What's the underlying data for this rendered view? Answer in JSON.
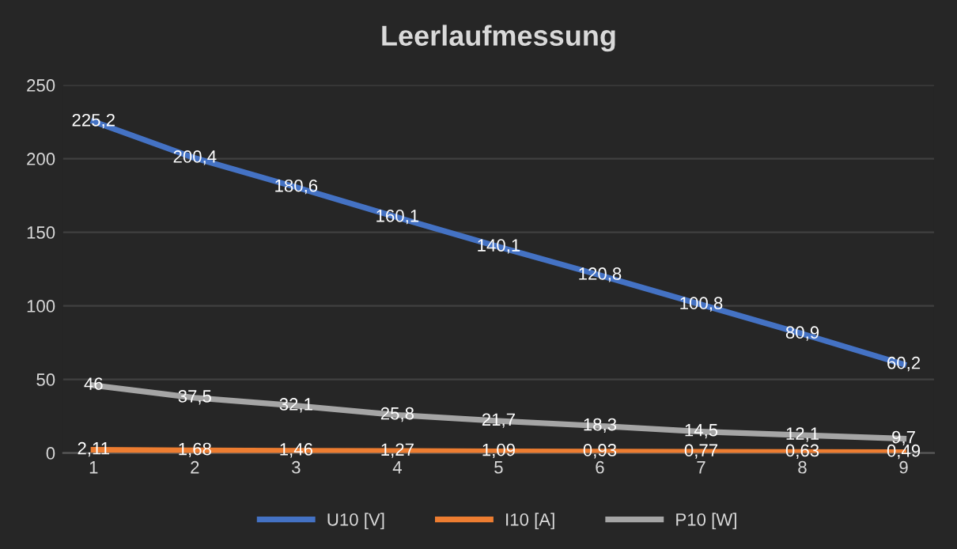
{
  "chart_data": {
    "type": "line",
    "title": "Leerlaufmessung",
    "categories": [
      "1",
      "2",
      "3",
      "4",
      "5",
      "6",
      "7",
      "8",
      "9"
    ],
    "series": [
      {
        "name": "U10 [V]",
        "color": "#4472c4",
        "values": [
          225.2,
          200.4,
          180.6,
          160.1,
          140.1,
          120.8,
          100.8,
          80.9,
          60.2
        ],
        "value_labels": [
          "225,2",
          "200,4",
          "180,6",
          "160,1",
          "140,1",
          "120,8",
          "100,8",
          "80,9",
          "60,2"
        ]
      },
      {
        "name": "I10 [A]",
        "color": "#ed7d31",
        "values": [
          2.11,
          1.68,
          1.46,
          1.27,
          1.09,
          0.93,
          0.77,
          0.63,
          0.49
        ],
        "value_labels": [
          "2,11",
          "1,68",
          "1,46",
          "1,27",
          "1,09",
          "0,93",
          "0,77",
          "0,63",
          "0,49"
        ]
      },
      {
        "name": "P10 [W]",
        "color": "#a5a5a5",
        "values": [
          46,
          37.5,
          32.1,
          25.8,
          21.7,
          18.3,
          14.5,
          12.1,
          9.7
        ],
        "value_labels": [
          "46",
          "37,5",
          "32,1",
          "25,8",
          "21,7",
          "18,3",
          "14,5",
          "12,1",
          "9,7"
        ]
      }
    ],
    "ylim": [
      0,
      250
    ],
    "yticks": [
      0,
      50,
      100,
      150,
      200,
      250
    ],
    "grid": "y",
    "legend": "bottom",
    "marker": "none",
    "line_style": "solid"
  }
}
